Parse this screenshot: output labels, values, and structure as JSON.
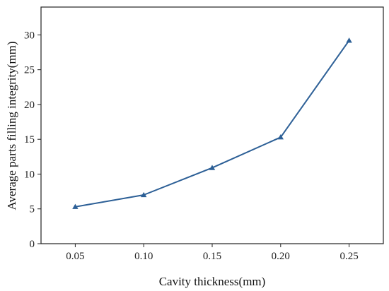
{
  "chart_data": {
    "type": "line",
    "xlabel": "Cavity thickness(mm)",
    "ylabel": "Average parts filling integrity(mm)",
    "x": [
      0.05,
      0.1,
      0.15,
      0.2,
      0.25
    ],
    "x_tick_labels": [
      "0.05",
      "0.10",
      "0.15",
      "0.20",
      "0.25"
    ],
    "xlim": [
      0.025,
      0.275
    ],
    "ylim": [
      0,
      34
    ],
    "y_ticks": [
      0,
      5,
      10,
      15,
      20,
      25,
      30
    ],
    "y_tick_labels": [
      "0",
      "5",
      "10",
      "15",
      "20",
      "25",
      "30"
    ],
    "series": [
      {
        "values": [
          5.3,
          7.0,
          10.9,
          15.3,
          29.2
        ],
        "marker": "triangle"
      }
    ],
    "grid": false,
    "colors": {
      "line": "#2c5f96",
      "marker": "#2c5f96",
      "axis": "#222222"
    }
  }
}
